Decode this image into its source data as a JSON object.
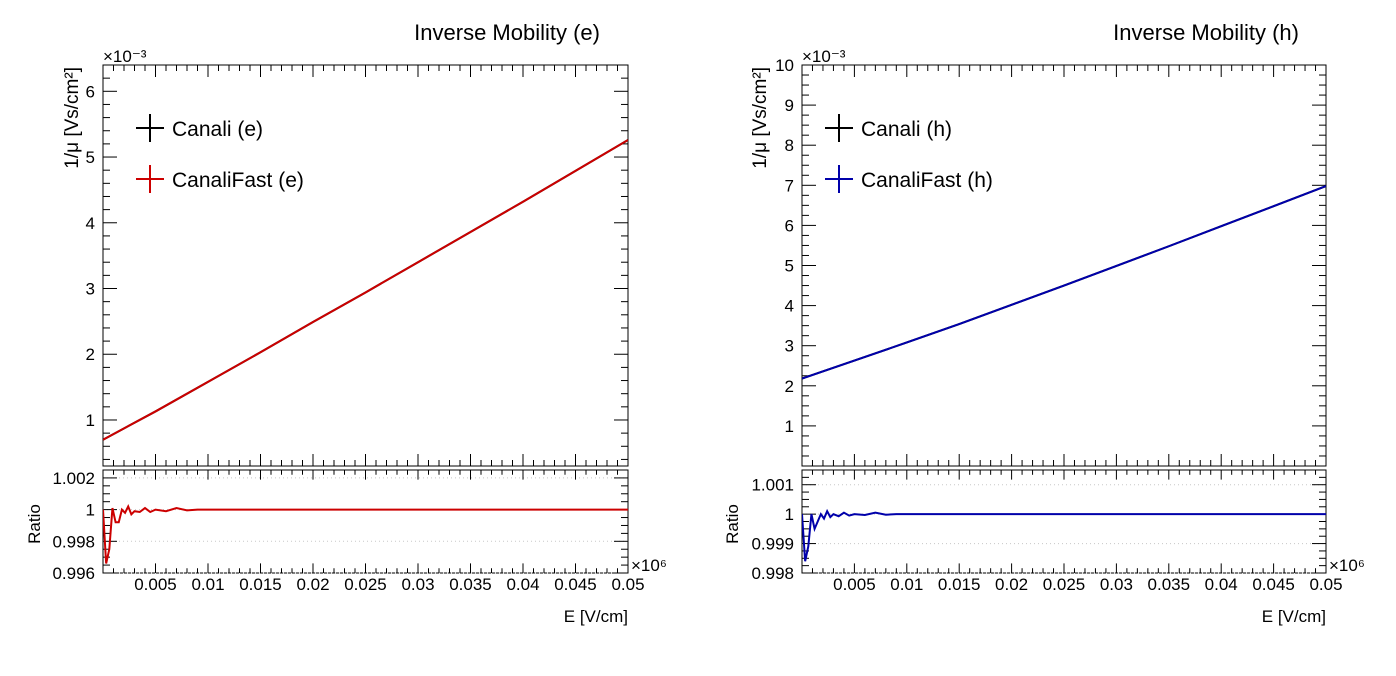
{
  "chart_data": [
    {
      "type": "line",
      "title": "Inverse Mobility (e)",
      "ylabel": "1/μ [Vs/cm²]",
      "yexponent": "×10⁻³",
      "xlabel": "E [V/cm]",
      "xexponent": "×10⁶",
      "xlim": [
        0,
        0.05
      ],
      "ylim": [
        0.3,
        6.4
      ],
      "yticks": [
        1,
        2,
        3,
        4,
        5,
        6
      ],
      "ytick_labels": [
        "1",
        "2",
        "3",
        "4",
        "5",
        "6"
      ],
      "xtick_labels": [
        "0.005",
        "0.01",
        "0.015",
        "0.02",
        "0.025",
        "0.03",
        "0.035",
        "0.04",
        "0.045",
        "0.05"
      ],
      "legend": {
        "placement": "top-left",
        "entries": [
          "Canali (e)",
          "CanaliFast (e)"
        ]
      },
      "series": [
        {
          "name": "Canali (e)",
          "color": "#000000",
          "x": [
            0,
            0.005,
            0.01,
            0.015,
            0.02,
            0.025,
            0.03,
            0.035,
            0.04,
            0.045,
            0.05
          ],
          "values": [
            0.7,
            1.13,
            1.58,
            2.03,
            2.49,
            2.94,
            3.4,
            3.86,
            4.32,
            4.79,
            5.26
          ]
        },
        {
          "name": "CanaliFast (e)",
          "color": "#cc0000",
          "x": [
            0,
            0.005,
            0.01,
            0.015,
            0.02,
            0.025,
            0.03,
            0.035,
            0.04,
            0.045,
            0.05
          ],
          "values": [
            0.7,
            1.13,
            1.58,
            2.03,
            2.49,
            2.94,
            3.4,
            3.86,
            4.32,
            4.79,
            5.26
          ]
        }
      ],
      "ratio": {
        "ylabel": "Ratio",
        "ylim": [
          0.996,
          1.0025
        ],
        "yticks": [
          0.996,
          0.998,
          1,
          1.002
        ],
        "ytick_labels": [
          "0.996",
          "0.998",
          "1",
          "1.002"
        ],
        "grid": true,
        "color": "#cc0000",
        "x": [
          0,
          0.0003,
          0.0006,
          0.0009,
          0.0012,
          0.0015,
          0.0018,
          0.0021,
          0.0024,
          0.0027,
          0.003,
          0.0035,
          0.004,
          0.0045,
          0.005,
          0.006,
          0.007,
          0.008,
          0.009,
          0.01,
          0.015,
          0.02,
          0.03,
          0.04,
          0.05
        ],
        "values": [
          1.0,
          0.9966,
          0.9975,
          1.0001,
          0.9992,
          0.9992,
          1.0,
          0.9998,
          1.0002,
          0.9997,
          0.9999,
          0.99985,
          1.0001,
          0.99985,
          1.0,
          0.9999,
          1.0001,
          0.99995,
          1.0,
          1.0,
          1.0,
          1.0,
          1.0,
          1.0,
          1.0
        ]
      }
    },
    {
      "type": "line",
      "title": "Inverse Mobility (h)",
      "ylabel": "1/μ [Vs/cm²]",
      "yexponent": "×10⁻³",
      "xlabel": "E [V/cm]",
      "xexponent": "×10⁶",
      "xlim": [
        0,
        0.05
      ],
      "ylim": [
        0.0,
        10.0
      ],
      "yticks": [
        1,
        2,
        3,
        4,
        5,
        6,
        7,
        8,
        9,
        10
      ],
      "ytick_labels": [
        "1",
        "2",
        "3",
        "4",
        "5",
        "6",
        "7",
        "8",
        "9",
        "10"
      ],
      "xtick_labels": [
        "0.005",
        "0.01",
        "0.015",
        "0.02",
        "0.025",
        "0.03",
        "0.035",
        "0.04",
        "0.045",
        "0.05"
      ],
      "legend": {
        "placement": "top-left",
        "entries": [
          "Canali (h)",
          "CanaliFast (h)"
        ]
      },
      "series": [
        {
          "name": "Canali (h)",
          "color": "#000000",
          "x": [
            0,
            0.005,
            0.01,
            0.015,
            0.02,
            0.025,
            0.03,
            0.035,
            0.04,
            0.045,
            0.05
          ],
          "values": [
            2.18,
            2.63,
            3.08,
            3.54,
            4.02,
            4.5,
            4.99,
            5.48,
            5.98,
            6.48,
            6.98
          ]
        },
        {
          "name": "CanaliFast (h)",
          "color": "#0000aa",
          "x": [
            0,
            0.005,
            0.01,
            0.015,
            0.02,
            0.025,
            0.03,
            0.035,
            0.04,
            0.045,
            0.05
          ],
          "values": [
            2.18,
            2.63,
            3.08,
            3.54,
            4.02,
            4.5,
            4.99,
            5.48,
            5.98,
            6.48,
            6.98
          ]
        }
      ],
      "ratio": {
        "ylabel": "Ratio",
        "ylim": [
          0.998,
          1.0015
        ],
        "yticks": [
          0.998,
          0.999,
          1,
          1.001
        ],
        "ytick_labels": [
          "0.998",
          "0.999",
          "1",
          "1.001"
        ],
        "grid": true,
        "color": "#0000aa",
        "x": [
          0,
          0.0003,
          0.0006,
          0.0009,
          0.0012,
          0.0015,
          0.0018,
          0.0021,
          0.0024,
          0.0027,
          0.003,
          0.0035,
          0.004,
          0.0045,
          0.005,
          0.006,
          0.007,
          0.008,
          0.009,
          0.01,
          0.015,
          0.02,
          0.03,
          0.04,
          0.05
        ],
        "values": [
          1.0,
          0.9984,
          0.9989,
          1.0,
          0.9995,
          0.99975,
          1.0,
          0.99985,
          1.0001,
          0.9999,
          1.0,
          0.99993,
          1.00005,
          0.99995,
          1.0,
          0.99997,
          1.00005,
          0.99998,
          1.0,
          1.0,
          1.0,
          1.0,
          1.0,
          1.0,
          1.0
        ]
      }
    }
  ]
}
